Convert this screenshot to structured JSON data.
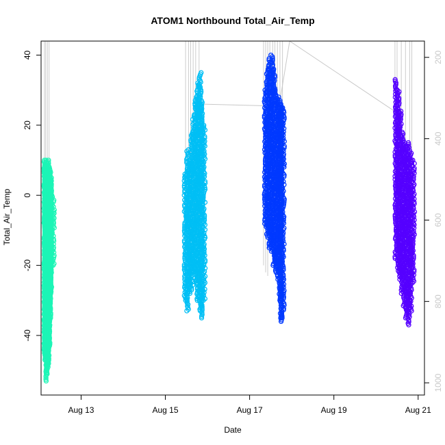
{
  "chart_data": {
    "type": "scatter",
    "title": "ATOM1 Northbound Total_Air_Temp",
    "xlabel": "Date",
    "ylabel": "Total_Air_Temp",
    "x_tick_labels": [
      "Aug 13",
      "Aug 15",
      "Aug 17",
      "Aug 19",
      "Aug 21"
    ],
    "x_tick_days": [
      13,
      15,
      17,
      19,
      21
    ],
    "y_ticks": [
      40,
      20,
      0,
      -20,
      -40
    ],
    "y_tick_labels": [
      "40",
      "20",
      "0",
      "-20",
      "-40"
    ],
    "y2_ticks": [
      200,
      400,
      600,
      800,
      1000
    ],
    "y2_tick_labels": [
      "200",
      "400",
      "600",
      "800",
      "1000"
    ],
    "xlim_days": [
      12.05,
      21.15
    ],
    "ylim": [
      -57,
      44
    ],
    "y2lim": [
      1030,
      160
    ],
    "series": [
      {
        "color": "#1cf5b6",
        "ranges": [
          [
            12.12,
            -45,
            10
          ],
          [
            12.14,
            -47,
            9
          ],
          [
            12.16,
            -53,
            10
          ],
          [
            12.18,
            -51,
            9
          ],
          [
            12.2,
            -49,
            8
          ],
          [
            12.22,
            -48,
            10
          ],
          [
            12.24,
            -43,
            8
          ],
          [
            12.26,
            -35,
            7
          ],
          [
            12.28,
            -28,
            5
          ],
          [
            12.3,
            -20,
            0
          ]
        ]
      },
      {
        "color": "#00bff5",
        "ranges": [
          [
            15.45,
            -30,
            6
          ],
          [
            15.5,
            -33,
            13
          ],
          [
            15.55,
            -28,
            10
          ],
          [
            15.6,
            -27,
            18
          ],
          [
            15.65,
            -22,
            23
          ],
          [
            15.7,
            -25,
            28
          ],
          [
            15.75,
            -30,
            32
          ],
          [
            15.8,
            -33,
            35
          ],
          [
            15.85,
            -35,
            27
          ],
          [
            15.88,
            -30,
            20
          ]
        ]
      },
      {
        "color": "#0039ff",
        "ranges": [
          [
            17.35,
            -9,
            30
          ],
          [
            17.4,
            -12,
            36
          ],
          [
            17.45,
            -15,
            39
          ],
          [
            17.5,
            -16,
            40
          ],
          [
            17.55,
            -20,
            36
          ],
          [
            17.6,
            -22,
            30
          ],
          [
            17.65,
            -24,
            28
          ],
          [
            17.7,
            -30,
            27
          ],
          [
            17.73,
            -36,
            26
          ],
          [
            17.76,
            -35,
            25
          ]
        ]
      },
      {
        "color": "#5500ff",
        "ranges": [
          [
            20.45,
            -18,
            33
          ],
          [
            20.5,
            -22,
            30
          ],
          [
            20.55,
            -24,
            24
          ],
          [
            20.6,
            -28,
            18
          ],
          [
            20.65,
            -32,
            15
          ],
          [
            20.7,
            -35,
            14
          ],
          [
            20.75,
            -37,
            15
          ],
          [
            20.8,
            -33,
            12
          ],
          [
            20.85,
            -25,
            10
          ]
        ]
      }
    ],
    "secondary_line": {
      "color": "#c8c8c8",
      "points": [
        [
          15.9,
          315
        ],
        [
          17.7,
          320
        ],
        [
          17.95,
          160
        ],
        [
          20.55,
          340
        ]
      ]
    },
    "vertical_segments": [
      [
        12.13,
        -35,
        44
      ],
      [
        12.16,
        -43,
        44
      ],
      [
        12.2,
        -40,
        44
      ],
      [
        12.24,
        -38,
        44
      ],
      [
        15.48,
        -30,
        44
      ],
      [
        15.55,
        -27,
        44
      ],
      [
        15.6,
        -20,
        44
      ],
      [
        15.66,
        -18,
        44
      ],
      [
        15.72,
        -15,
        44
      ],
      [
        15.8,
        -12,
        44
      ],
      [
        17.33,
        -20,
        44
      ],
      [
        17.38,
        -22,
        44
      ],
      [
        17.43,
        -23,
        44
      ],
      [
        17.48,
        -15,
        44
      ],
      [
        17.55,
        -12,
        44
      ],
      [
        17.6,
        -10,
        44
      ],
      [
        17.66,
        -15,
        44
      ],
      [
        17.72,
        -18,
        44
      ],
      [
        17.78,
        -12,
        44
      ],
      [
        20.45,
        -12,
        44
      ],
      [
        20.5,
        -15,
        44
      ],
      [
        20.6,
        -10,
        44
      ],
      [
        20.7,
        -14,
        44
      ],
      [
        20.8,
        -18,
        44
      ],
      [
        20.85,
        -5,
        44
      ]
    ],
    "grid": false,
    "legend": "none"
  }
}
